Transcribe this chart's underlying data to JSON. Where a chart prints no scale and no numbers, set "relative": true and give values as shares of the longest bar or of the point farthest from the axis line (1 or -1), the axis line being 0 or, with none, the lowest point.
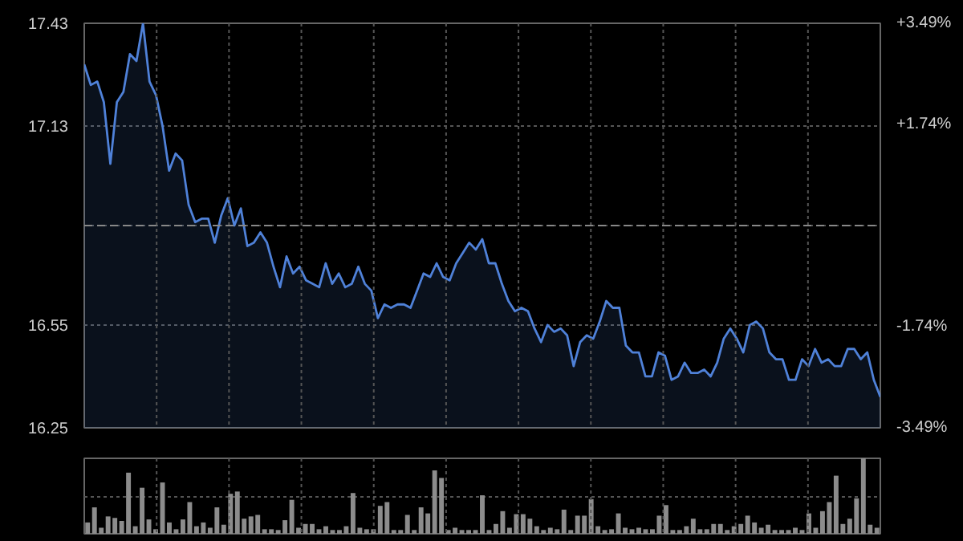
{
  "chart_data": [
    {
      "type": "area",
      "categories": [
        null,
        null,
        null,
        null,
        null,
        null,
        null,
        null,
        null,
        null,
        null,
        null,
        null,
        null,
        null,
        null,
        null,
        null,
        null,
        null,
        null,
        null,
        null,
        null,
        null,
        null,
        null,
        null,
        null,
        null,
        null,
        null,
        null,
        null,
        null,
        null,
        null,
        null,
        null,
        null,
        null,
        null,
        null,
        null,
        null,
        null,
        null,
        null,
        null,
        null,
        null,
        null,
        null,
        null,
        null,
        null,
        null,
        null,
        null,
        null,
        null,
        null,
        null,
        null,
        null,
        null,
        null,
        null,
        null,
        null,
        null,
        null,
        null,
        null,
        null,
        null,
        null,
        null,
        null,
        null,
        null,
        null,
        null,
        null,
        null,
        null,
        null,
        null,
        null,
        null,
        null,
        null,
        null,
        null,
        null,
        null,
        null,
        null,
        null,
        null,
        null,
        null,
        null,
        null,
        null,
        null,
        null,
        null,
        null,
        null,
        null,
        null,
        null,
        null,
        null,
        null,
        null,
        null,
        null,
        null,
        null,
        null,
        null
      ],
      "series": [
        {
          "color": "#4f81d8",
          "values": [
            17.31,
            17.25,
            17.26,
            17.2,
            17.02,
            17.2,
            17.23,
            17.34,
            17.32,
            17.43,
            17.26,
            17.22,
            17.13,
            17.0,
            17.05,
            17.03,
            16.9,
            16.85,
            16.86,
            16.86,
            16.79,
            16.87,
            16.92,
            16.84,
            16.89,
            16.78,
            16.79,
            16.82,
            16.79,
            16.72,
            16.66,
            16.75,
            16.7,
            16.72,
            16.68,
            16.67,
            16.66,
            16.73,
            16.67,
            16.7,
            16.66,
            16.67,
            16.72,
            16.67,
            16.65,
            16.57,
            16.61,
            16.6,
            16.61,
            16.61,
            16.6,
            16.65,
            16.7,
            16.69,
            16.73,
            16.69,
            16.68,
            16.73,
            16.76,
            16.79,
            16.77,
            16.8,
            16.73,
            16.73,
            16.67,
            16.62,
            16.59,
            16.6,
            16.59,
            16.54,
            16.5,
            16.55,
            16.53,
            16.54,
            16.52,
            16.43,
            16.5,
            16.52,
            16.51,
            16.56,
            16.62,
            16.6,
            16.6,
            16.49,
            16.47,
            16.47,
            16.4,
            16.4,
            16.47,
            16.46,
            16.39,
            16.4,
            16.44,
            16.41,
            16.41,
            16.42,
            16.4,
            16.44,
            16.51,
            16.54,
            16.51,
            16.47,
            16.55,
            16.56,
            16.54,
            16.47,
            16.45,
            16.45,
            16.39,
            16.39,
            16.45,
            16.43,
            16.48,
            16.44,
            16.45,
            16.43,
            16.43,
            16.48,
            16.48,
            16.45,
            16.47,
            16.39,
            16.34
          ]
        }
      ],
      "ylim": [
        16.25,
        17.43
      ],
      "yticks": [
        16.25,
        16.55,
        {
          "value": 16.84,
          "label": null
        },
        17.13,
        17.43
      ],
      "y2lim": [
        -3.49,
        3.49
      ],
      "y2ticks": [
        {
          "value": -3.49,
          "label": "-3.49%"
        },
        {
          "value": -1.74,
          "label": "-1.74%"
        },
        {
          "value": 0,
          "label": null
        },
        {
          "value": 1.74,
          "label": "+1.74%"
        },
        {
          "value": 3.49,
          "label": "+3.49%"
        }
      ],
      "ref_lines": [
        {
          "axis": "y",
          "value": 16.84,
          "color": "#888888",
          "line_style": "dashed"
        }
      ],
      "grid": true
    },
    {
      "type": "bar",
      "relative": true,
      "grid": true,
      "categories": [
        null,
        null,
        null,
        null,
        null,
        null,
        null,
        null,
        null,
        null,
        null,
        null,
        null,
        null,
        null,
        null,
        null,
        null,
        null,
        null,
        null,
        null,
        null,
        null,
        null,
        null,
        null,
        null,
        null,
        null,
        null,
        null,
        null,
        null,
        null,
        null,
        null,
        null,
        null,
        null,
        null,
        null,
        null,
        null,
        null,
        null,
        null,
        null,
        null,
        null,
        null,
        null,
        null,
        null,
        null,
        null,
        null,
        null,
        null,
        null,
        null,
        null,
        null,
        null,
        null,
        null,
        null,
        null,
        null,
        null,
        null,
        null,
        null,
        null,
        null,
        null,
        null,
        null,
        null,
        null,
        null,
        null,
        null,
        null,
        null,
        null,
        null,
        null,
        null,
        null,
        null,
        null,
        null,
        null,
        null,
        null,
        null,
        null,
        null,
        null,
        null,
        null,
        null,
        null,
        null,
        null,
        null,
        null,
        null,
        null,
        null,
        null,
        null,
        null,
        null,
        null,
        null
      ],
      "series": [
        {
          "color": "#8c8c8c",
          "values": [
            0.15,
            0.35,
            0.08,
            0.23,
            0.21,
            0.17,
            0.81,
            0.1,
            0.61,
            0.19,
            0.06,
            0.68,
            0.15,
            0.06,
            0.19,
            0.42,
            0.1,
            0.15,
            0.08,
            0.35,
            0.12,
            0.53,
            0.56,
            0.2,
            0.23,
            0.25,
            0.06,
            0.06,
            0.05,
            0.18,
            0.45,
            0.08,
            0.13,
            0.13,
            0.06,
            0.1,
            0.05,
            0.05,
            0.1,
            0.54,
            0.08,
            0.06,
            0.06,
            0.37,
            0.42,
            0.05,
            0.05,
            0.25,
            0.05,
            0.35,
            0.27,
            0.84,
            0.74,
            0.05,
            0.08,
            0.05,
            0.05,
            0.05,
            0.51,
            0.05,
            0.13,
            0.3,
            0.08,
            0.26,
            0.26,
            0.2,
            0.1,
            0.05,
            0.08,
            0.06,
            0.32,
            0.05,
            0.24,
            0.24,
            0.46,
            0.1,
            0.05,
            0.06,
            0.27,
            0.08,
            0.06,
            0.08,
            0.06,
            0.06,
            0.24,
            0.38,
            0.05,
            0.05,
            0.1,
            0.2,
            0.06,
            0.06,
            0.13,
            0.13,
            0.05,
            0.1,
            0.13,
            0.24,
            0.15,
            0.08,
            0.12,
            0.05,
            0.05,
            0.05,
            0.08,
            0.05,
            0.27,
            0.08,
            0.3,
            0.42,
            0.77,
            0.13,
            0.2,
            0.47,
            1.0,
            0.12,
            0.08
          ]
        }
      ]
    }
  ]
}
